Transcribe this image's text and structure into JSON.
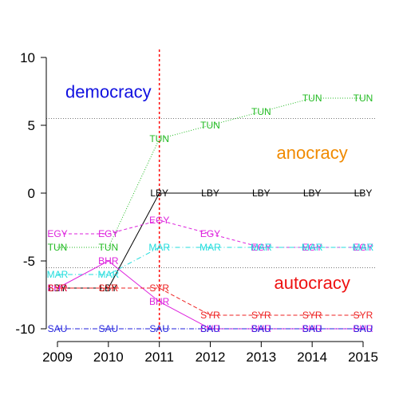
{
  "chart_data": {
    "type": "line",
    "title": "",
    "xlabel": "",
    "ylabel": "",
    "x": [
      2009,
      2010,
      2011,
      2012,
      2013,
      2014,
      2015
    ],
    "xticks": [
      "2009",
      "2010",
      "2011",
      "2012",
      "2013",
      "2014",
      "2015"
    ],
    "yticks": [
      "-10",
      "-5",
      "0",
      "5",
      "10"
    ],
    "ylim": [
      -10.7,
      10.7
    ],
    "xlim": [
      2008.8,
      2015.3
    ],
    "grid": false,
    "reference_lines": {
      "vertical_x": 2011,
      "horizontal_y": [
        5.5,
        -5.5
      ]
    },
    "region_labels": [
      {
        "text": "democracy",
        "x": 2010,
        "y": 7.5,
        "color": "#1010e0"
      },
      {
        "text": "anocracy",
        "x": 2014,
        "y": 3,
        "color": "#f08a00"
      },
      {
        "text": "autocracy",
        "x": 2014,
        "y": -6.6,
        "color": "#ee1111"
      }
    ],
    "series": [
      {
        "name": "TUN",
        "color": "#22bb22",
        "dash": "1,2",
        "values": [
          -4,
          -4,
          4,
          5,
          6,
          7,
          7
        ]
      },
      {
        "name": "LBY",
        "color": "#000000",
        "dash": "",
        "values": [
          -7,
          -7,
          0,
          0,
          0,
          0,
          0
        ]
      },
      {
        "name": "EGY",
        "color": "#dd22dd",
        "dash": "4,3",
        "values": [
          -3,
          -3,
          -2,
          -3,
          -4,
          -4,
          -4
        ]
      },
      {
        "name": "MAR",
        "color": "#22dddd",
        "dash": "6,3,1,3",
        "values": [
          -6,
          -6,
          -4,
          -4,
          -4,
          -4,
          -4
        ]
      },
      {
        "name": "BHR",
        "color": "#dd22dd",
        "dash": "",
        "values": [
          -7,
          -5,
          -8,
          -10,
          -10,
          -10,
          -10
        ]
      },
      {
        "name": "SYR",
        "color": "#ee2222",
        "dash": "5,3",
        "values": [
          -7,
          -7,
          -7,
          -9,
          -9,
          -9,
          -9
        ]
      },
      {
        "name": "SAU",
        "color": "#2222dd",
        "dash": "6,2,1,2",
        "values": [
          -10,
          -10,
          -10,
          -10,
          -10,
          -10,
          -10
        ]
      }
    ]
  }
}
